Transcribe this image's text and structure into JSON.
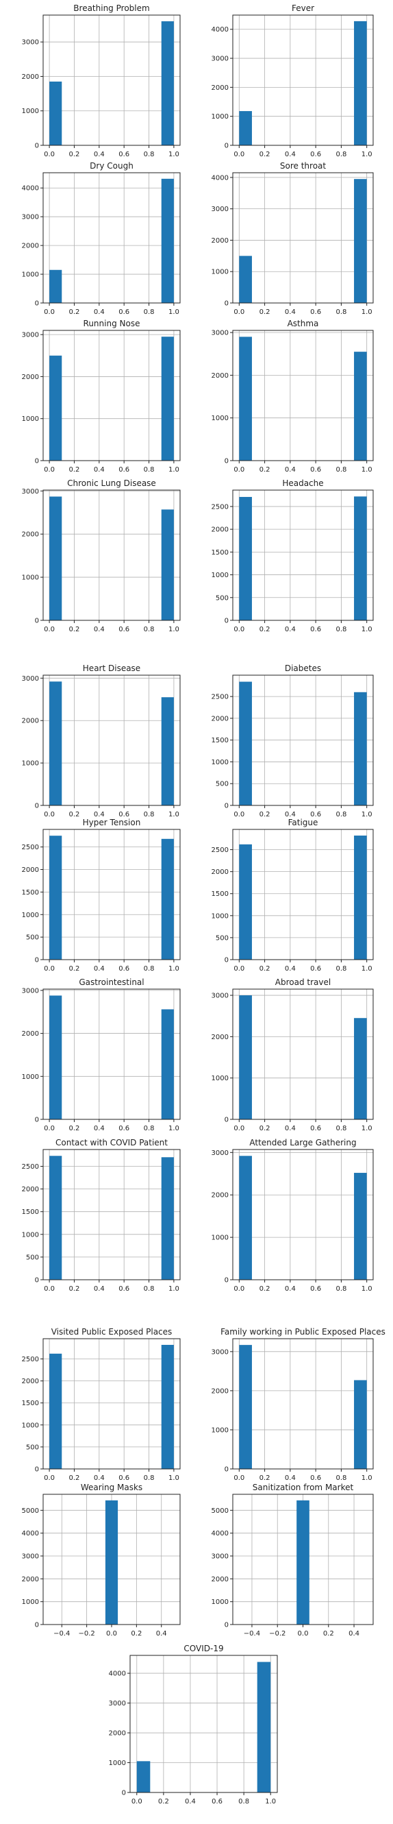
{
  "figure": {
    "bar_color": "#1f77b4",
    "grid_color": "#b0b0b0"
  },
  "chart_data": [
    {
      "type": "bar",
      "title": "Breathing Problem",
      "x": [
        0.0,
        1.0
      ],
      "values": [
        1850,
        3600
      ],
      "xlim": [
        -0.05,
        1.05
      ],
      "ylim": [
        0,
        3780
      ],
      "xticks": [
        0.0,
        0.2,
        0.4,
        0.6,
        0.8,
        1.0
      ],
      "xticklabels": [
        "0.0",
        "0.2",
        "0.4",
        "0.6",
        "0.8",
        "1.0"
      ],
      "yticks": [
        0,
        1000,
        2000,
        3000
      ],
      "yticklabels": [
        "0",
        "1000",
        "2000",
        "3000"
      ],
      "grid": true
    },
    {
      "type": "bar",
      "title": "Fever",
      "x": [
        0.0,
        1.0
      ],
      "values": [
        1180,
        4280
      ],
      "xlim": [
        -0.05,
        1.05
      ],
      "ylim": [
        0,
        4490
      ],
      "xticks": [
        0.0,
        0.2,
        0.4,
        0.6,
        0.8,
        1.0
      ],
      "xticklabels": [
        "0.0",
        "0.2",
        "0.4",
        "0.6",
        "0.8",
        "1.0"
      ],
      "yticks": [
        0,
        1000,
        2000,
        3000,
        4000
      ],
      "yticklabels": [
        "0",
        "1000",
        "2000",
        "3000",
        "4000"
      ],
      "grid": true
    },
    {
      "type": "bar",
      "title": "Dry Cough",
      "x": [
        0.0,
        1.0
      ],
      "values": [
        1150,
        4320
      ],
      "xlim": [
        -0.05,
        1.05
      ],
      "ylim": [
        0,
        4530
      ],
      "xticks": [
        0.0,
        0.2,
        0.4,
        0.6,
        0.8,
        1.0
      ],
      "xticklabels": [
        "0.0",
        "0.2",
        "0.4",
        "0.6",
        "0.8",
        "1.0"
      ],
      "yticks": [
        0,
        1000,
        2000,
        3000,
        4000
      ],
      "yticklabels": [
        "0",
        "1000",
        "2000",
        "3000",
        "4000"
      ],
      "grid": true
    },
    {
      "type": "bar",
      "title": "Sore throat",
      "x": [
        0.0,
        1.0
      ],
      "values": [
        1500,
        3950
      ],
      "xlim": [
        -0.05,
        1.05
      ],
      "ylim": [
        0,
        4150
      ],
      "xticks": [
        0.0,
        0.2,
        0.4,
        0.6,
        0.8,
        1.0
      ],
      "xticklabels": [
        "0.0",
        "0.2",
        "0.4",
        "0.6",
        "0.8",
        "1.0"
      ],
      "yticks": [
        0,
        1000,
        2000,
        3000,
        4000
      ],
      "yticklabels": [
        "0",
        "1000",
        "2000",
        "3000",
        "4000"
      ],
      "grid": true
    },
    {
      "type": "bar",
      "title": "Running Nose",
      "x": [
        0.0,
        1.0
      ],
      "values": [
        2500,
        2950
      ],
      "xlim": [
        -0.05,
        1.05
      ],
      "ylim": [
        0,
        3100
      ],
      "xticks": [
        0.0,
        0.2,
        0.4,
        0.6,
        0.8,
        1.0
      ],
      "xticklabels": [
        "0.0",
        "0.2",
        "0.4",
        "0.6",
        "0.8",
        "1.0"
      ],
      "yticks": [
        0,
        1000,
        2000,
        3000
      ],
      "yticklabels": [
        "0",
        "1000",
        "2000",
        "3000"
      ],
      "grid": true
    },
    {
      "type": "bar",
      "title": "Asthma",
      "x": [
        0.0,
        1.0
      ],
      "values": [
        2900,
        2550
      ],
      "xlim": [
        -0.05,
        1.05
      ],
      "ylim": [
        0,
        3050
      ],
      "xticks": [
        0.0,
        0.2,
        0.4,
        0.6,
        0.8,
        1.0
      ],
      "xticklabels": [
        "0.0",
        "0.2",
        "0.4",
        "0.6",
        "0.8",
        "1.0"
      ],
      "yticks": [
        0,
        1000,
        2000,
        3000
      ],
      "yticklabels": [
        "0",
        "1000",
        "2000",
        "3000"
      ],
      "grid": true
    },
    {
      "type": "bar",
      "title": "Chronic Lung Disease",
      "x": [
        0.0,
        1.0
      ],
      "values": [
        2870,
        2570
      ],
      "xlim": [
        -0.05,
        1.05
      ],
      "ylim": [
        0,
        3020
      ],
      "xticks": [
        0.0,
        0.2,
        0.4,
        0.6,
        0.8,
        1.0
      ],
      "xticklabels": [
        "0.0",
        "0.2",
        "0.4",
        "0.6",
        "0.8",
        "1.0"
      ],
      "yticks": [
        0,
        1000,
        2000,
        3000
      ],
      "yticklabels": [
        "0",
        "1000",
        "2000",
        "3000"
      ],
      "grid": true
    },
    {
      "type": "bar",
      "title": "Headache",
      "x": [
        0.0,
        1.0
      ],
      "values": [
        2710,
        2720
      ],
      "xlim": [
        -0.05,
        1.05
      ],
      "ylim": [
        0,
        2860
      ],
      "xticks": [
        0.0,
        0.2,
        0.4,
        0.6,
        0.8,
        1.0
      ],
      "xticklabels": [
        "0.0",
        "0.2",
        "0.4",
        "0.6",
        "0.8",
        "1.0"
      ],
      "yticks": [
        0,
        500,
        1000,
        1500,
        2000,
        2500
      ],
      "yticklabels": [
        "0",
        "500",
        "1000",
        "1500",
        "2000",
        "2500"
      ],
      "grid": true
    },
    {
      "type": "bar",
      "title": "Heart Disease",
      "x": [
        0.0,
        1.0
      ],
      "values": [
        2920,
        2550
      ],
      "xlim": [
        -0.05,
        1.05
      ],
      "ylim": [
        0,
        3070
      ],
      "xticks": [
        0.0,
        0.2,
        0.4,
        0.6,
        0.8,
        1.0
      ],
      "xticklabels": [
        "0.0",
        "0.2",
        "0.4",
        "0.6",
        "0.8",
        "1.0"
      ],
      "yticks": [
        0,
        1000,
        2000,
        3000
      ],
      "yticklabels": [
        "0",
        "1000",
        "2000",
        "3000"
      ],
      "grid": true
    },
    {
      "type": "bar",
      "title": "Diabetes",
      "x": [
        0.0,
        1.0
      ],
      "values": [
        2840,
        2600
      ],
      "xlim": [
        -0.05,
        1.05
      ],
      "ylim": [
        0,
        2990
      ],
      "xticks": [
        0.0,
        0.2,
        0.4,
        0.6,
        0.8,
        1.0
      ],
      "xticklabels": [
        "0.0",
        "0.2",
        "0.4",
        "0.6",
        "0.8",
        "1.0"
      ],
      "yticks": [
        0,
        500,
        1000,
        1500,
        2000,
        2500
      ],
      "yticklabels": [
        "0",
        "500",
        "1000",
        "1500",
        "2000",
        "2500"
      ],
      "grid": true
    },
    {
      "type": "bar",
      "title": "Hyper Tension",
      "x": [
        0.0,
        1.0
      ],
      "values": [
        2750,
        2680
      ],
      "xlim": [
        -0.05,
        1.05
      ],
      "ylim": [
        0,
        2890
      ],
      "xticks": [
        0.0,
        0.2,
        0.4,
        0.6,
        0.8,
        1.0
      ],
      "xticklabels": [
        "0.0",
        "0.2",
        "0.4",
        "0.6",
        "0.8",
        "1.0"
      ],
      "yticks": [
        0,
        500,
        1000,
        1500,
        2000,
        2500
      ],
      "yticklabels": [
        "0",
        "500",
        "1000",
        "1500",
        "2000",
        "2500"
      ],
      "grid": true
    },
    {
      "type": "bar",
      "title": "Fatigue",
      "x": [
        0.0,
        1.0
      ],
      "values": [
        2620,
        2820
      ],
      "xlim": [
        -0.05,
        1.05
      ],
      "ylim": [
        0,
        2960
      ],
      "xticks": [
        0.0,
        0.2,
        0.4,
        0.6,
        0.8,
        1.0
      ],
      "xticklabels": [
        "0.0",
        "0.2",
        "0.4",
        "0.6",
        "0.8",
        "1.0"
      ],
      "yticks": [
        0,
        500,
        1000,
        1500,
        2000,
        2500
      ],
      "yticklabels": [
        "0",
        "500",
        "1000",
        "1500",
        "2000",
        "2500"
      ],
      "grid": true
    },
    {
      "type": "bar",
      "title": "Gastrointestinal",
      "x": [
        0.0,
        1.0
      ],
      "values": [
        2880,
        2560
      ],
      "xlim": [
        -0.05,
        1.05
      ],
      "ylim": [
        0,
        3030
      ],
      "xticks": [
        0.0,
        0.2,
        0.4,
        0.6,
        0.8,
        1.0
      ],
      "xticklabels": [
        "0.0",
        "0.2",
        "0.4",
        "0.6",
        "0.8",
        "1.0"
      ],
      "yticks": [
        0,
        1000,
        2000,
        3000
      ],
      "yticklabels": [
        "0",
        "1000",
        "2000",
        "3000"
      ],
      "grid": true
    },
    {
      "type": "bar",
      "title": "Abroad travel",
      "x": [
        0.0,
        1.0
      ],
      "values": [
        3000,
        2450
      ],
      "xlim": [
        -0.05,
        1.05
      ],
      "ylim": [
        0,
        3150
      ],
      "xticks": [
        0.0,
        0.2,
        0.4,
        0.6,
        0.8,
        1.0
      ],
      "xticklabels": [
        "0.0",
        "0.2",
        "0.4",
        "0.6",
        "0.8",
        "1.0"
      ],
      "yticks": [
        0,
        1000,
        2000,
        3000
      ],
      "yticklabels": [
        "0",
        "1000",
        "2000",
        "3000"
      ],
      "grid": true
    },
    {
      "type": "bar",
      "title": "Contact with COVID Patient",
      "x": [
        0.0,
        1.0
      ],
      "values": [
        2730,
        2700
      ],
      "xlim": [
        -0.05,
        1.05
      ],
      "ylim": [
        0,
        2870
      ],
      "xticks": [
        0.0,
        0.2,
        0.4,
        0.6,
        0.8,
        1.0
      ],
      "xticklabels": [
        "0.0",
        "0.2",
        "0.4",
        "0.6",
        "0.8",
        "1.0"
      ],
      "yticks": [
        0,
        500,
        1000,
        1500,
        2000,
        2500
      ],
      "yticklabels": [
        "0",
        "500",
        "1000",
        "1500",
        "2000",
        "2500"
      ],
      "grid": true
    },
    {
      "type": "bar",
      "title": "Attended Large Gathering",
      "x": [
        0.0,
        1.0
      ],
      "values": [
        2920,
        2520
      ],
      "xlim": [
        -0.05,
        1.05
      ],
      "ylim": [
        0,
        3070
      ],
      "xticks": [
        0.0,
        0.2,
        0.4,
        0.6,
        0.8,
        1.0
      ],
      "xticklabels": [
        "0.0",
        "0.2",
        "0.4",
        "0.6",
        "0.8",
        "1.0"
      ],
      "yticks": [
        0,
        1000,
        2000,
        3000
      ],
      "yticklabels": [
        "0",
        "1000",
        "2000",
        "3000"
      ],
      "grid": true
    },
    {
      "type": "bar",
      "title": "Visited Public Exposed Places",
      "x": [
        0.0,
        1.0
      ],
      "values": [
        2620,
        2820
      ],
      "xlim": [
        -0.05,
        1.05
      ],
      "ylim": [
        0,
        2960
      ],
      "xticks": [
        0.0,
        0.2,
        0.4,
        0.6,
        0.8,
        1.0
      ],
      "xticklabels": [
        "0.0",
        "0.2",
        "0.4",
        "0.6",
        "0.8",
        "1.0"
      ],
      "yticks": [
        0,
        500,
        1000,
        1500,
        2000,
        2500
      ],
      "yticklabels": [
        "0",
        "500",
        "1000",
        "1500",
        "2000",
        "2500"
      ],
      "grid": true
    },
    {
      "type": "bar",
      "title": "Family working in Public Exposed Places",
      "x": [
        0.0,
        1.0
      ],
      "values": [
        3170,
        2270
      ],
      "xlim": [
        -0.05,
        1.05
      ],
      "ylim": [
        0,
        3330
      ],
      "xticks": [
        0.0,
        0.2,
        0.4,
        0.6,
        0.8,
        1.0
      ],
      "xticklabels": [
        "0.0",
        "0.2",
        "0.4",
        "0.6",
        "0.8",
        "1.0"
      ],
      "yticks": [
        0,
        1000,
        2000,
        3000
      ],
      "yticklabels": [
        "0",
        "1000",
        "2000",
        "3000"
      ],
      "grid": true
    },
    {
      "type": "bar",
      "title": "Wearing Masks",
      "x": [
        0.0
      ],
      "values": [
        5434
      ],
      "xlim": [
        -0.55,
        0.55
      ],
      "ylim": [
        0,
        5700
      ],
      "bar_width": 0.1,
      "xticks": [
        -0.4,
        -0.2,
        0.0,
        0.2,
        0.4
      ],
      "xticklabels": [
        "−0.4",
        "−0.2",
        "0.0",
        "0.2",
        "0.4"
      ],
      "yticks": [
        0,
        1000,
        2000,
        3000,
        4000,
        5000
      ],
      "yticklabels": [
        "0",
        "1000",
        "2000",
        "3000",
        "4000",
        "5000"
      ],
      "grid": true
    },
    {
      "type": "bar",
      "title": "Sanitization from Market",
      "x": [
        0.0
      ],
      "values": [
        5434
      ],
      "xlim": [
        -0.55,
        0.55
      ],
      "ylim": [
        0,
        5700
      ],
      "bar_width": 0.1,
      "xticks": [
        -0.4,
        -0.2,
        0.0,
        0.2,
        0.4
      ],
      "xticklabels": [
        "−0.4",
        "−0.2",
        "0.0",
        "0.2",
        "0.4"
      ],
      "yticks": [
        0,
        1000,
        2000,
        3000,
        4000,
        5000
      ],
      "yticklabels": [
        "0",
        "1000",
        "2000",
        "3000",
        "4000",
        "5000"
      ],
      "grid": true
    },
    {
      "type": "bar",
      "title": "COVID-19",
      "x": [
        0.0,
        1.0
      ],
      "values": [
        1050,
        4380
      ],
      "xlim": [
        -0.05,
        1.05
      ],
      "ylim": [
        0,
        4600
      ],
      "xticks": [
        0.0,
        0.2,
        0.4,
        0.6,
        0.8,
        1.0
      ],
      "xticklabels": [
        "0.0",
        "0.2",
        "0.4",
        "0.6",
        "0.8",
        "1.0"
      ],
      "yticks": [
        0,
        1000,
        2000,
        3000,
        4000
      ],
      "yticklabels": [
        "0",
        "1000",
        "2000",
        "3000",
        "4000"
      ],
      "grid": true
    }
  ]
}
